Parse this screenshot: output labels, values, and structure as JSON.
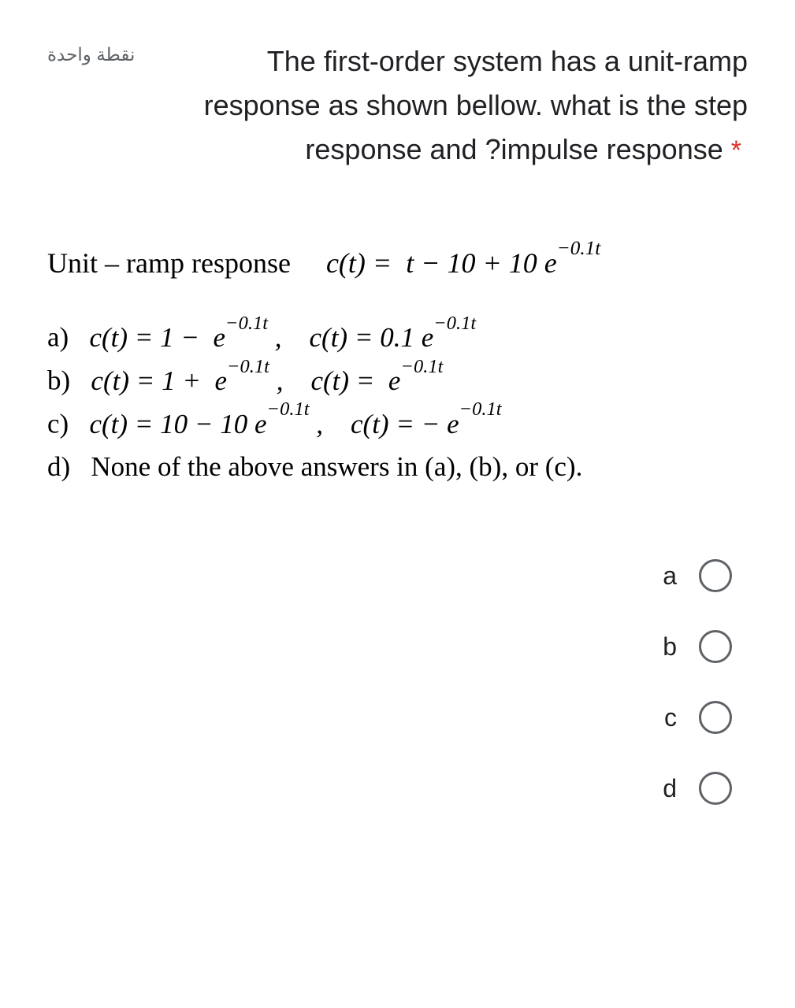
{
  "header": {
    "points_label": "نقطة واحدة",
    "question_text": "The first-order system has a unit-ramp response as shown bellow. what is the step response and ?impulse response",
    "required_marker": "*"
  },
  "content": {
    "ramp_label": "Unit – ramp response",
    "ramp_equation_html": "c(t) =  t − 10 + 10 e<sup>−0.1t</sup>",
    "options": [
      {
        "letter": "a)",
        "html": "c(t) = 1 −  e<sup>−0.1t</sup> ,    c(t) = 0.1 e<sup>−0.1t</sup>"
      },
      {
        "letter": "b)",
        "html": "c(t) = 1 +  e<sup>−0.1t</sup> ,    c(t) =  e<sup>−0.1t</sup>"
      },
      {
        "letter": "c)",
        "html": "c(t) = 10 − 10 e<sup>−0.1t</sup> ,    c(t) = − e<sup>−0.1t</sup>"
      },
      {
        "letter": "d)",
        "html": "None of the above answers in (a), (b), or (c)."
      }
    ]
  },
  "radio_choices": [
    {
      "label": "a"
    },
    {
      "label": "b"
    },
    {
      "label": "c"
    },
    {
      "label": "d"
    }
  ],
  "colors": {
    "text_primary": "#202124",
    "text_secondary": "#5f6368",
    "required": "#d93025",
    "radio_border": "#5f6368",
    "background": "#ffffff"
  }
}
